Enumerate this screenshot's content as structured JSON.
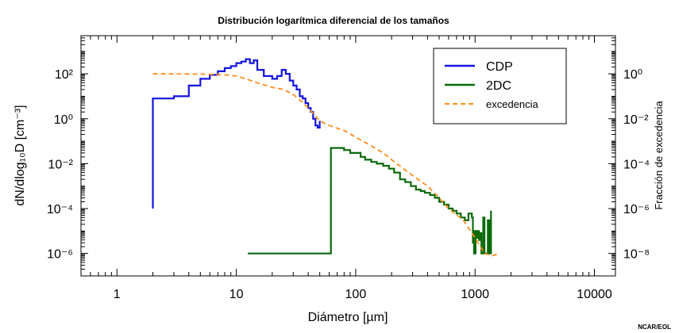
{
  "chart_data": {
    "type": "line",
    "title": "Distribución logarítmica diferencial de los tamaños",
    "xlabel": "Diámetro [µm]",
    "ylabel": "dN/dlog₁₀D [cm⁻³]",
    "y2label": "Fracción de excedencia",
    "xscale": "log",
    "yscale": "log",
    "y2scale": "log",
    "xlim": [
      0.5,
      15000
    ],
    "ylim": [
      1e-07,
      5000.0
    ],
    "y2lim": [
      1e-09,
      50.0
    ],
    "x_ticks": [
      "1",
      "10",
      "100",
      "1000",
      "10000"
    ],
    "y_ticks": [
      "10⁻⁶",
      "10⁻⁴",
      "10⁻²",
      "10⁰",
      "10²"
    ],
    "y2_ticks": [
      "10⁻⁸",
      "10⁻⁶",
      "10⁻⁴",
      "10⁻²",
      "10⁰"
    ],
    "legend_position": "top-right",
    "series": [
      {
        "name": "CDP",
        "axis": "left",
        "style": "step",
        "color": "#1414e0",
        "x": [
          2,
          2,
          3,
          4,
          5,
          6,
          7,
          8,
          9,
          10,
          11,
          12,
          13,
          14,
          15,
          17,
          20,
          22,
          24,
          26,
          28,
          30,
          32,
          34,
          36,
          38,
          40,
          42,
          44,
          46,
          48,
          50
        ],
        "y": [
          0.0001,
          8,
          10,
          30,
          60,
          90,
          130,
          180,
          220,
          300,
          350,
          450,
          300,
          400,
          150,
          80,
          60,
          80,
          150,
          100,
          50,
          30,
          20,
          10,
          8,
          5,
          3,
          2,
          1,
          0.5,
          0.4,
          0.8
        ]
      },
      {
        "name": "2DC",
        "axis": "left",
        "style": "step",
        "color": "#0a6a0a",
        "x": [
          12.5,
          62,
          62,
          70,
          80,
          90,
          100,
          110,
          120,
          135,
          150,
          170,
          190,
          210,
          235,
          260,
          290,
          320,
          350,
          380,
          420,
          460,
          500,
          550,
          600,
          650,
          700,
          760,
          820,
          880,
          940,
          960,
          980,
          990,
          1000,
          1010,
          1030,
          1050,
          1080,
          1100,
          1130,
          1170,
          1200,
          1240,
          1280,
          1320,
          1360
        ],
        "y": [
          1e-06,
          1e-06,
          0.05,
          0.05,
          0.04,
          0.03,
          0.03,
          0.02,
          0.015,
          0.012,
          0.01,
          0.008,
          0.006,
          0.004,
          0.002,
          0.0015,
          0.001,
          0.0007,
          0.0006,
          0.0005,
          0.0004,
          0.0003,
          0.0002,
          0.00015,
          0.0001,
          8e-05,
          6e-05,
          4e-05,
          3e-05,
          6e-05,
          4e-05,
          3e-06,
          1e-06,
          1e-05,
          1e-06,
          1e-05,
          5e-06,
          1e-05,
          4e-06,
          8e-06,
          1e-06,
          4e-05,
          1e-06,
          1e-06,
          3e-05,
          1e-06,
          8e-05
        ]
      },
      {
        "name": "excedencia",
        "axis": "right",
        "style": "dashed",
        "color": "#ff8c1a",
        "x": [
          2,
          5,
          8,
          10,
          12,
          15,
          20,
          25,
          30,
          35,
          40,
          45,
          50,
          60,
          80,
          100,
          130,
          170,
          220,
          300,
          400,
          500,
          600,
          800,
          1000,
          1200,
          1400,
          1600
        ],
        "y": [
          1,
          0.98,
          0.9,
          0.8,
          0.6,
          0.4,
          0.25,
          0.2,
          0.12,
          0.06,
          0.03,
          0.015,
          0.008,
          0.005,
          0.003,
          0.0015,
          0.0007,
          0.0003,
          0.0001,
          3e-05,
          1e-05,
          3e-06,
          1e-06,
          3e-07,
          5e-08,
          1e-08,
          8e-09,
          1e-08
        ]
      }
    ]
  },
  "credit": "NCAR/EOL"
}
